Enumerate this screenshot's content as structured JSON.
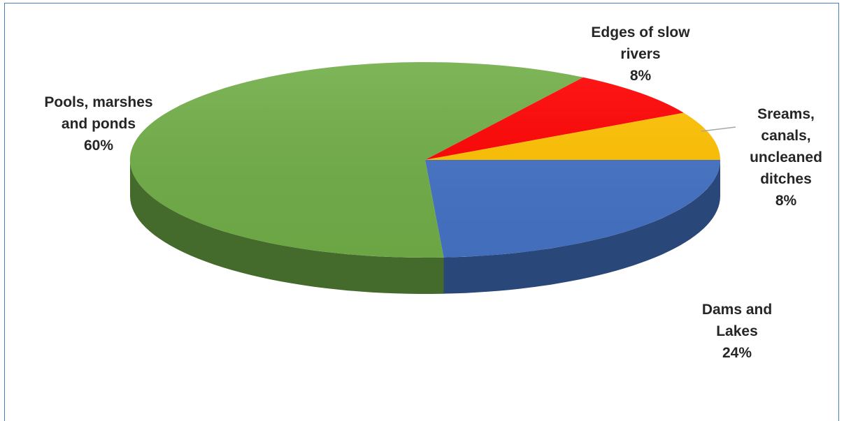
{
  "chart_data": {
    "type": "pie",
    "style": "3d",
    "title": "",
    "slices": [
      {
        "label": "Dams and Lakes",
        "label_lines": [
          "Dams and",
          "Lakes"
        ],
        "value": 24,
        "value_label": "24%",
        "color": "#4472c4"
      },
      {
        "label": "Sreams, canals, uncleaned ditches",
        "label_lines": [
          "Sreams,",
          "canals,",
          "uncleaned",
          "ditches"
        ],
        "value": 8,
        "value_label": "8%",
        "color": "#ffc000"
      },
      {
        "label": "Edges of slow rivers",
        "label_lines": [
          "Edges of slow",
          "rivers"
        ],
        "value": 8,
        "value_label": "8%",
        "color": "#ff0000"
      },
      {
        "label": "Pools, marshes and ponds",
        "label_lines": [
          "Pools, marshes",
          "and ponds"
        ],
        "value": 60,
        "value_label": "60%",
        "color": "#70ad47"
      }
    ],
    "legend": "none",
    "unit": "%"
  }
}
